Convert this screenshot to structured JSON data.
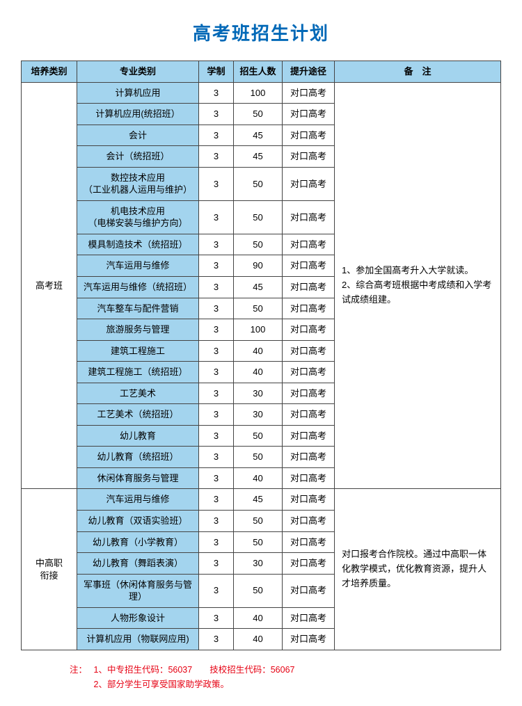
{
  "title": "高考班招生计划",
  "columns": [
    "培养类别",
    "专业类别",
    "学制",
    "招生人数",
    "提升途径",
    "备　注"
  ],
  "col_widths": [
    "80px",
    "175px",
    "50px",
    "70px",
    "75px",
    "auto"
  ],
  "groups": [
    {
      "category": "高考班",
      "note": "1、参加全国高考升入大学就读。\n2、综合高考班根据中考成绩和入学考试成绩组建。",
      "rows": [
        {
          "major": "计算机应用",
          "years": "3",
          "count": "100",
          "path": "对口高考"
        },
        {
          "major": "计算机应用(统招班）",
          "years": "3",
          "count": "50",
          "path": "对口高考"
        },
        {
          "major": "会计",
          "years": "3",
          "count": "45",
          "path": "对口高考"
        },
        {
          "major": "会计（统招班）",
          "years": "3",
          "count": "45",
          "path": "对口高考"
        },
        {
          "major": "数控技术应用\n（工业机器人运用与维护）",
          "years": "3",
          "count": "50",
          "path": "对口高考"
        },
        {
          "major": "机电技术应用\n（电梯安装与维护方向）",
          "years": "3",
          "count": "50",
          "path": "对口高考"
        },
        {
          "major": "模具制造技术（统招班）",
          "years": "3",
          "count": "50",
          "path": "对口高考"
        },
        {
          "major": "汽车运用与维修",
          "years": "3",
          "count": "90",
          "path": "对口高考"
        },
        {
          "major": "汽车运用与维修（统招班）",
          "years": "3",
          "count": "45",
          "path": "对口高考"
        },
        {
          "major": "汽车整车与配件营销",
          "years": "3",
          "count": "50",
          "path": "对口高考"
        },
        {
          "major": "旅游服务与管理",
          "years": "3",
          "count": "100",
          "path": "对口高考"
        },
        {
          "major": "建筑工程施工",
          "years": "3",
          "count": "40",
          "path": "对口高考"
        },
        {
          "major": "建筑工程施工（统招班）",
          "years": "3",
          "count": "40",
          "path": "对口高考"
        },
        {
          "major": "工艺美术",
          "years": "3",
          "count": "30",
          "path": "对口高考"
        },
        {
          "major": "工艺美术（统招班）",
          "years": "3",
          "count": "30",
          "path": "对口高考"
        },
        {
          "major": "幼儿教育",
          "years": "3",
          "count": "50",
          "path": "对口高考"
        },
        {
          "major": "幼儿教育（统招班）",
          "years": "3",
          "count": "50",
          "path": "对口高考"
        },
        {
          "major": "休闲体育服务与管理",
          "years": "3",
          "count": "40",
          "path": "对口高考"
        }
      ]
    },
    {
      "category": "中高职\n衔接",
      "note": "对口报考合作院校。通过中高职一体化教学模式，优化教育资源，提升人才培养质量。",
      "rows": [
        {
          "major": "汽车运用与维修",
          "years": "3",
          "count": "45",
          "path": "对口高考"
        },
        {
          "major": "幼儿教育（双语实验班）",
          "years": "3",
          "count": "50",
          "path": "对口高考"
        },
        {
          "major": "幼儿教育（小学教育）",
          "years": "3",
          "count": "50",
          "path": "对口高考"
        },
        {
          "major": "幼儿教育（舞蹈表演）",
          "years": "3",
          "count": "30",
          "path": "对口高考"
        },
        {
          "major": "军事班（休闲体育服务与管理）",
          "years": "3",
          "count": "50",
          "path": "对口高考"
        },
        {
          "major": "人物形象设计",
          "years": "3",
          "count": "40",
          "path": "对口高考"
        },
        {
          "major": "计算机应用（物联网应用)",
          "years": "3",
          "count": "40",
          "path": "对口高考"
        }
      ]
    }
  ],
  "footnote": {
    "label": "注：",
    "lines": [
      "1、中专招生代码：56037　　技校招生代码：56067",
      "2、部分学生可享受国家助学政策。"
    ]
  },
  "colors": {
    "title": "#0068b7",
    "header_bg": "#a3d4ee",
    "border": "#444444",
    "footnote": "#e60012"
  }
}
